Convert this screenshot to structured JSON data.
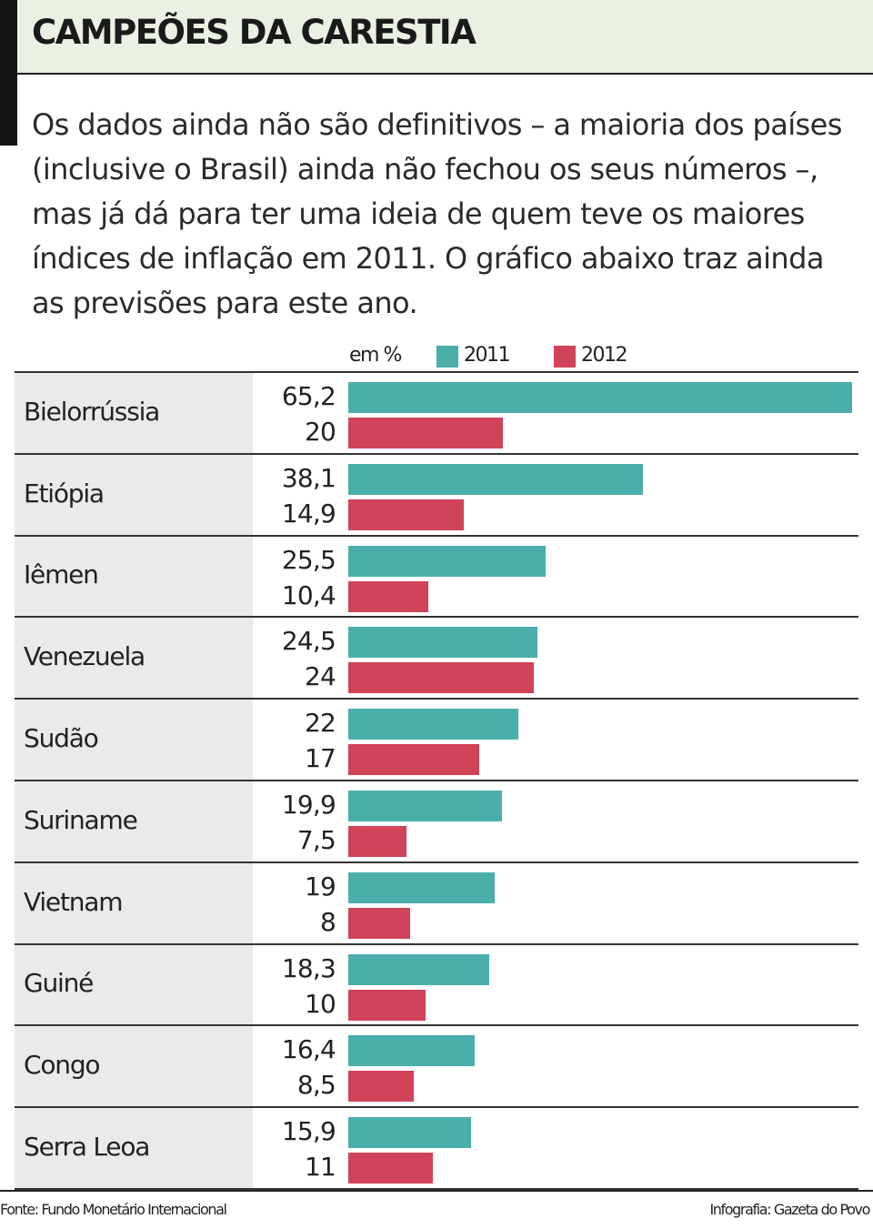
{
  "header": {
    "title": "CAMPEÕES DA CARESTIA"
  },
  "intro": "Os dados ainda não são definitivos – a maioria dos países (inclusive o Brasil) ainda não fechou os seus números –, mas já dá para ter uma ideia de quem teve os maiores índices de inflação em 2011. O gráfico abaixo traz ainda as previsões para este ano.",
  "legend": {
    "unit": "em %",
    "items": [
      {
        "label": "2011",
        "color": "#4aafab"
      },
      {
        "label": "2012",
        "color": "#d14358"
      }
    ]
  },
  "chart_data": {
    "type": "bar",
    "orientation": "horizontal",
    "categories": [
      "Bielorrússia",
      "Etiópia",
      "Iêmen",
      "Venezuela",
      "Sudão",
      "Suriname",
      "Vietnam",
      "Guiné",
      "Congo",
      "Serra Leoa"
    ],
    "series": [
      {
        "name": "2011",
        "color": "#4aafab",
        "values": [
          65.2,
          38.1,
          25.5,
          24.5,
          22,
          19.9,
          19,
          18.3,
          16.4,
          15.9
        ]
      },
      {
        "name": "2012",
        "color": "#d14358",
        "values": [
          20,
          14.9,
          10.4,
          24,
          17,
          7.5,
          8,
          10,
          8.5,
          11
        ]
      }
    ],
    "value_labels": [
      [
        "65,2",
        "20"
      ],
      [
        "38,1",
        "14,9"
      ],
      [
        "25,5",
        "10,4"
      ],
      [
        "24,5",
        "24"
      ],
      [
        "22",
        "17"
      ],
      [
        "19,9",
        "7,5"
      ],
      [
        "19",
        "8"
      ],
      [
        "18,3",
        "10"
      ],
      [
        "16,4",
        "8,5"
      ],
      [
        "15,9",
        "11"
      ]
    ],
    "unit": "em %",
    "xlim": [
      0,
      65.2
    ]
  },
  "footer": {
    "source": "Fonte: Fundo Monetário Internacional",
    "credit": "Infografia: Gazeta do Povo"
  }
}
